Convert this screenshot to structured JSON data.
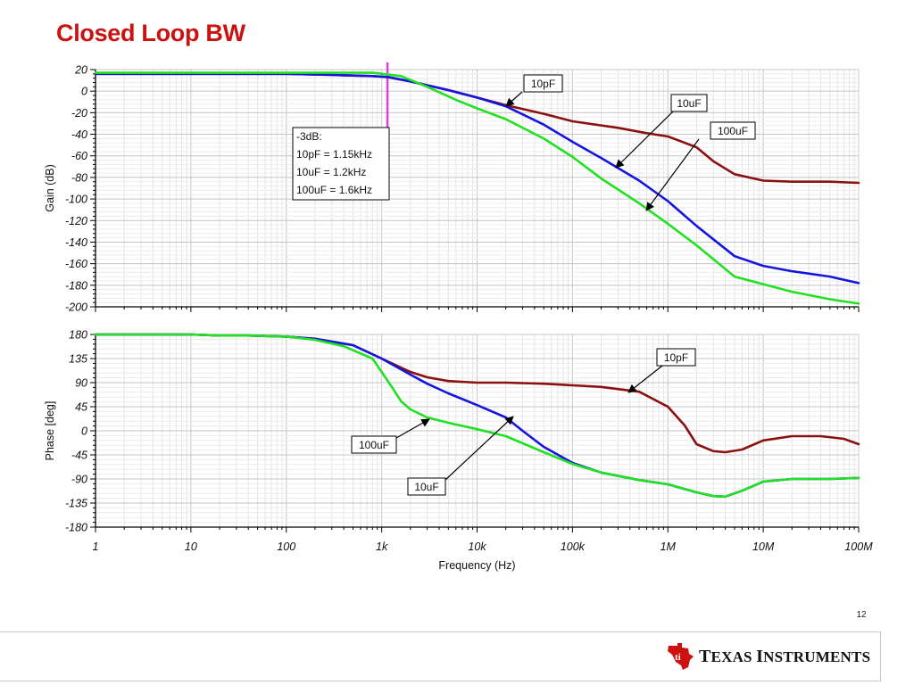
{
  "page_title": "Closed Loop BW",
  "page_number": "12",
  "footer": {
    "logo_text": "Texas Instruments"
  },
  "colors": {
    "title": "#cc1111",
    "c10pF": "#8b1010",
    "c10uF": "#1515e0",
    "c100uF": "#22e022",
    "marker": "#e040e0"
  },
  "chart_data": [
    {
      "type": "line",
      "title": "",
      "xlabel": "",
      "ylabel": "Gain (dB)",
      "xscale": "log",
      "xlim": [
        1,
        100000000
      ],
      "ylim": [
        -200,
        20
      ],
      "yticks": [
        20,
        0,
        -20,
        -40,
        -60,
        -80,
        -100,
        -120,
        -140,
        -160,
        -180,
        -200
      ],
      "ytick_labels": [
        "20",
        "0",
        "-20",
        "-40",
        "-60",
        "-80",
        "-100",
        "-120",
        "-140",
        "-160",
        "-180",
        "-200"
      ],
      "grid": true,
      "vline": {
        "x": 1150,
        "color": "#e040e0"
      },
      "annotation_box": {
        "lines": [
          "-3dB:",
          "10pF = 1.15kHz",
          "10uF = 1.2kHz",
          "100uF = 1.6kHz"
        ]
      },
      "series": [
        {
          "name": "10pF",
          "color": "#8b1010",
          "x": [
            1,
            10,
            100,
            300,
            800,
            1150,
            2000,
            5000,
            10000,
            20000,
            50000,
            100000,
            300000,
            600000,
            1000000,
            2000000,
            3000000,
            5000000,
            10000000,
            20000000,
            50000000,
            100000000
          ],
          "y": [
            16,
            16,
            16,
            15,
            14,
            13,
            9,
            1,
            -6,
            -13,
            -21,
            -28,
            -34,
            -39,
            -42,
            -52,
            -65,
            -77,
            -83,
            -84,
            -84,
            -85
          ]
        },
        {
          "name": "10uF",
          "color": "#1515e0",
          "x": [
            1,
            10,
            100,
            300,
            800,
            1200,
            2000,
            5000,
            10000,
            20000,
            50000,
            100000,
            200000,
            500000,
            1000000,
            2000000,
            5000000,
            10000000,
            20000000,
            50000000,
            100000000
          ],
          "y": [
            16,
            16,
            16,
            15,
            14,
            13,
            9,
            1,
            -6,
            -14,
            -31,
            -47,
            -62,
            -83,
            -102,
            -125,
            -153,
            -162,
            -167,
            -172,
            -178
          ]
        },
        {
          "name": "100uF",
          "color": "#22e022",
          "x": [
            1,
            10,
            100,
            300,
            800,
            1600,
            3000,
            6000,
            10000,
            20000,
            50000,
            100000,
            200000,
            500000,
            1000000,
            2000000,
            5000000,
            10000000,
            20000000,
            50000000,
            100000000
          ],
          "y": [
            17,
            17,
            17,
            17,
            17,
            14,
            4,
            -8,
            -16,
            -26,
            -44,
            -61,
            -81,
            -104,
            -123,
            -143,
            -172,
            -179,
            -186,
            -193,
            -197
          ]
        }
      ],
      "callouts": [
        {
          "label": "10pF"
        },
        {
          "label": "10uF"
        },
        {
          "label": "100uF"
        }
      ]
    },
    {
      "type": "line",
      "title": "",
      "xlabel": "Frequency (Hz)",
      "ylabel": "Phase [deg]",
      "xscale": "log",
      "xlim": [
        1,
        100000000
      ],
      "ylim": [
        -180,
        180
      ],
      "xticks": [
        1,
        10,
        100,
        1000,
        10000,
        100000,
        1000000,
        10000000,
        100000000
      ],
      "xtick_labels": [
        "1",
        "10",
        "100",
        "1k",
        "10k",
        "100k",
        "1M",
        "10M",
        "100M"
      ],
      "yticks": [
        180,
        135,
        90,
        45,
        0,
        -45,
        -90,
        -135,
        -180
      ],
      "ytick_labels": [
        "180",
        "135",
        "90",
        "45",
        "0",
        "-45",
        "-90",
        "-135",
        "-180"
      ],
      "grid": true,
      "series": [
        {
          "name": "10pF",
          "color": "#8b1010",
          "x": [
            1,
            10,
            20,
            40,
            100,
            200,
            500,
            1000,
            2000,
            3000,
            5000,
            10000,
            20000,
            50000,
            100000,
            200000,
            500000,
            1000000,
            1500000,
            2000000,
            3000000,
            4000000,
            6000000,
            10000000,
            20000000,
            40000000,
            70000000,
            100000000
          ],
          "y": [
            180,
            180,
            178,
            178,
            176,
            172,
            160,
            135,
            110,
            100,
            93,
            90,
            90,
            88,
            85,
            82,
            73,
            45,
            10,
            -25,
            -38,
            -40,
            -35,
            -18,
            -10,
            -10,
            -15,
            -25
          ]
        },
        {
          "name": "10uF",
          "color": "#1515e0",
          "x": [
            1,
            10,
            20,
            40,
            100,
            200,
            500,
            1000,
            2000,
            3000,
            5000,
            10000,
            20000,
            30000,
            50000,
            100000,
            200000,
            500000,
            1000000,
            2000000,
            3000000,
            4000000,
            6000000,
            10000000,
            20000000,
            50000000,
            100000000
          ],
          "y": [
            180,
            180,
            178,
            178,
            176,
            172,
            160,
            135,
            105,
            88,
            70,
            48,
            25,
            0,
            -30,
            -60,
            -78,
            -92,
            -100,
            -115,
            -122,
            -123,
            -112,
            -95,
            -90,
            -90,
            -88
          ]
        },
        {
          "name": "100uF",
          "color": "#22e022",
          "x": [
            1,
            10,
            20,
            40,
            100,
            200,
            400,
            800,
            1000,
            1300,
            1600,
            2000,
            3000,
            5000,
            10000,
            20000,
            50000,
            100000,
            200000,
            500000,
            1000000,
            2000000,
            3000000,
            4000000,
            6000000,
            10000000,
            20000000,
            50000000,
            100000000
          ],
          "y": [
            180,
            180,
            178,
            178,
            176,
            170,
            158,
            135,
            110,
            80,
            55,
            40,
            25,
            15,
            3,
            -10,
            -40,
            -62,
            -78,
            -92,
            -100,
            -115,
            -122,
            -123,
            -112,
            -95,
            -90,
            -90,
            -88
          ]
        }
      ],
      "callouts": [
        {
          "label": "10pF"
        },
        {
          "label": "100uF"
        },
        {
          "label": "10uF"
        }
      ]
    }
  ]
}
